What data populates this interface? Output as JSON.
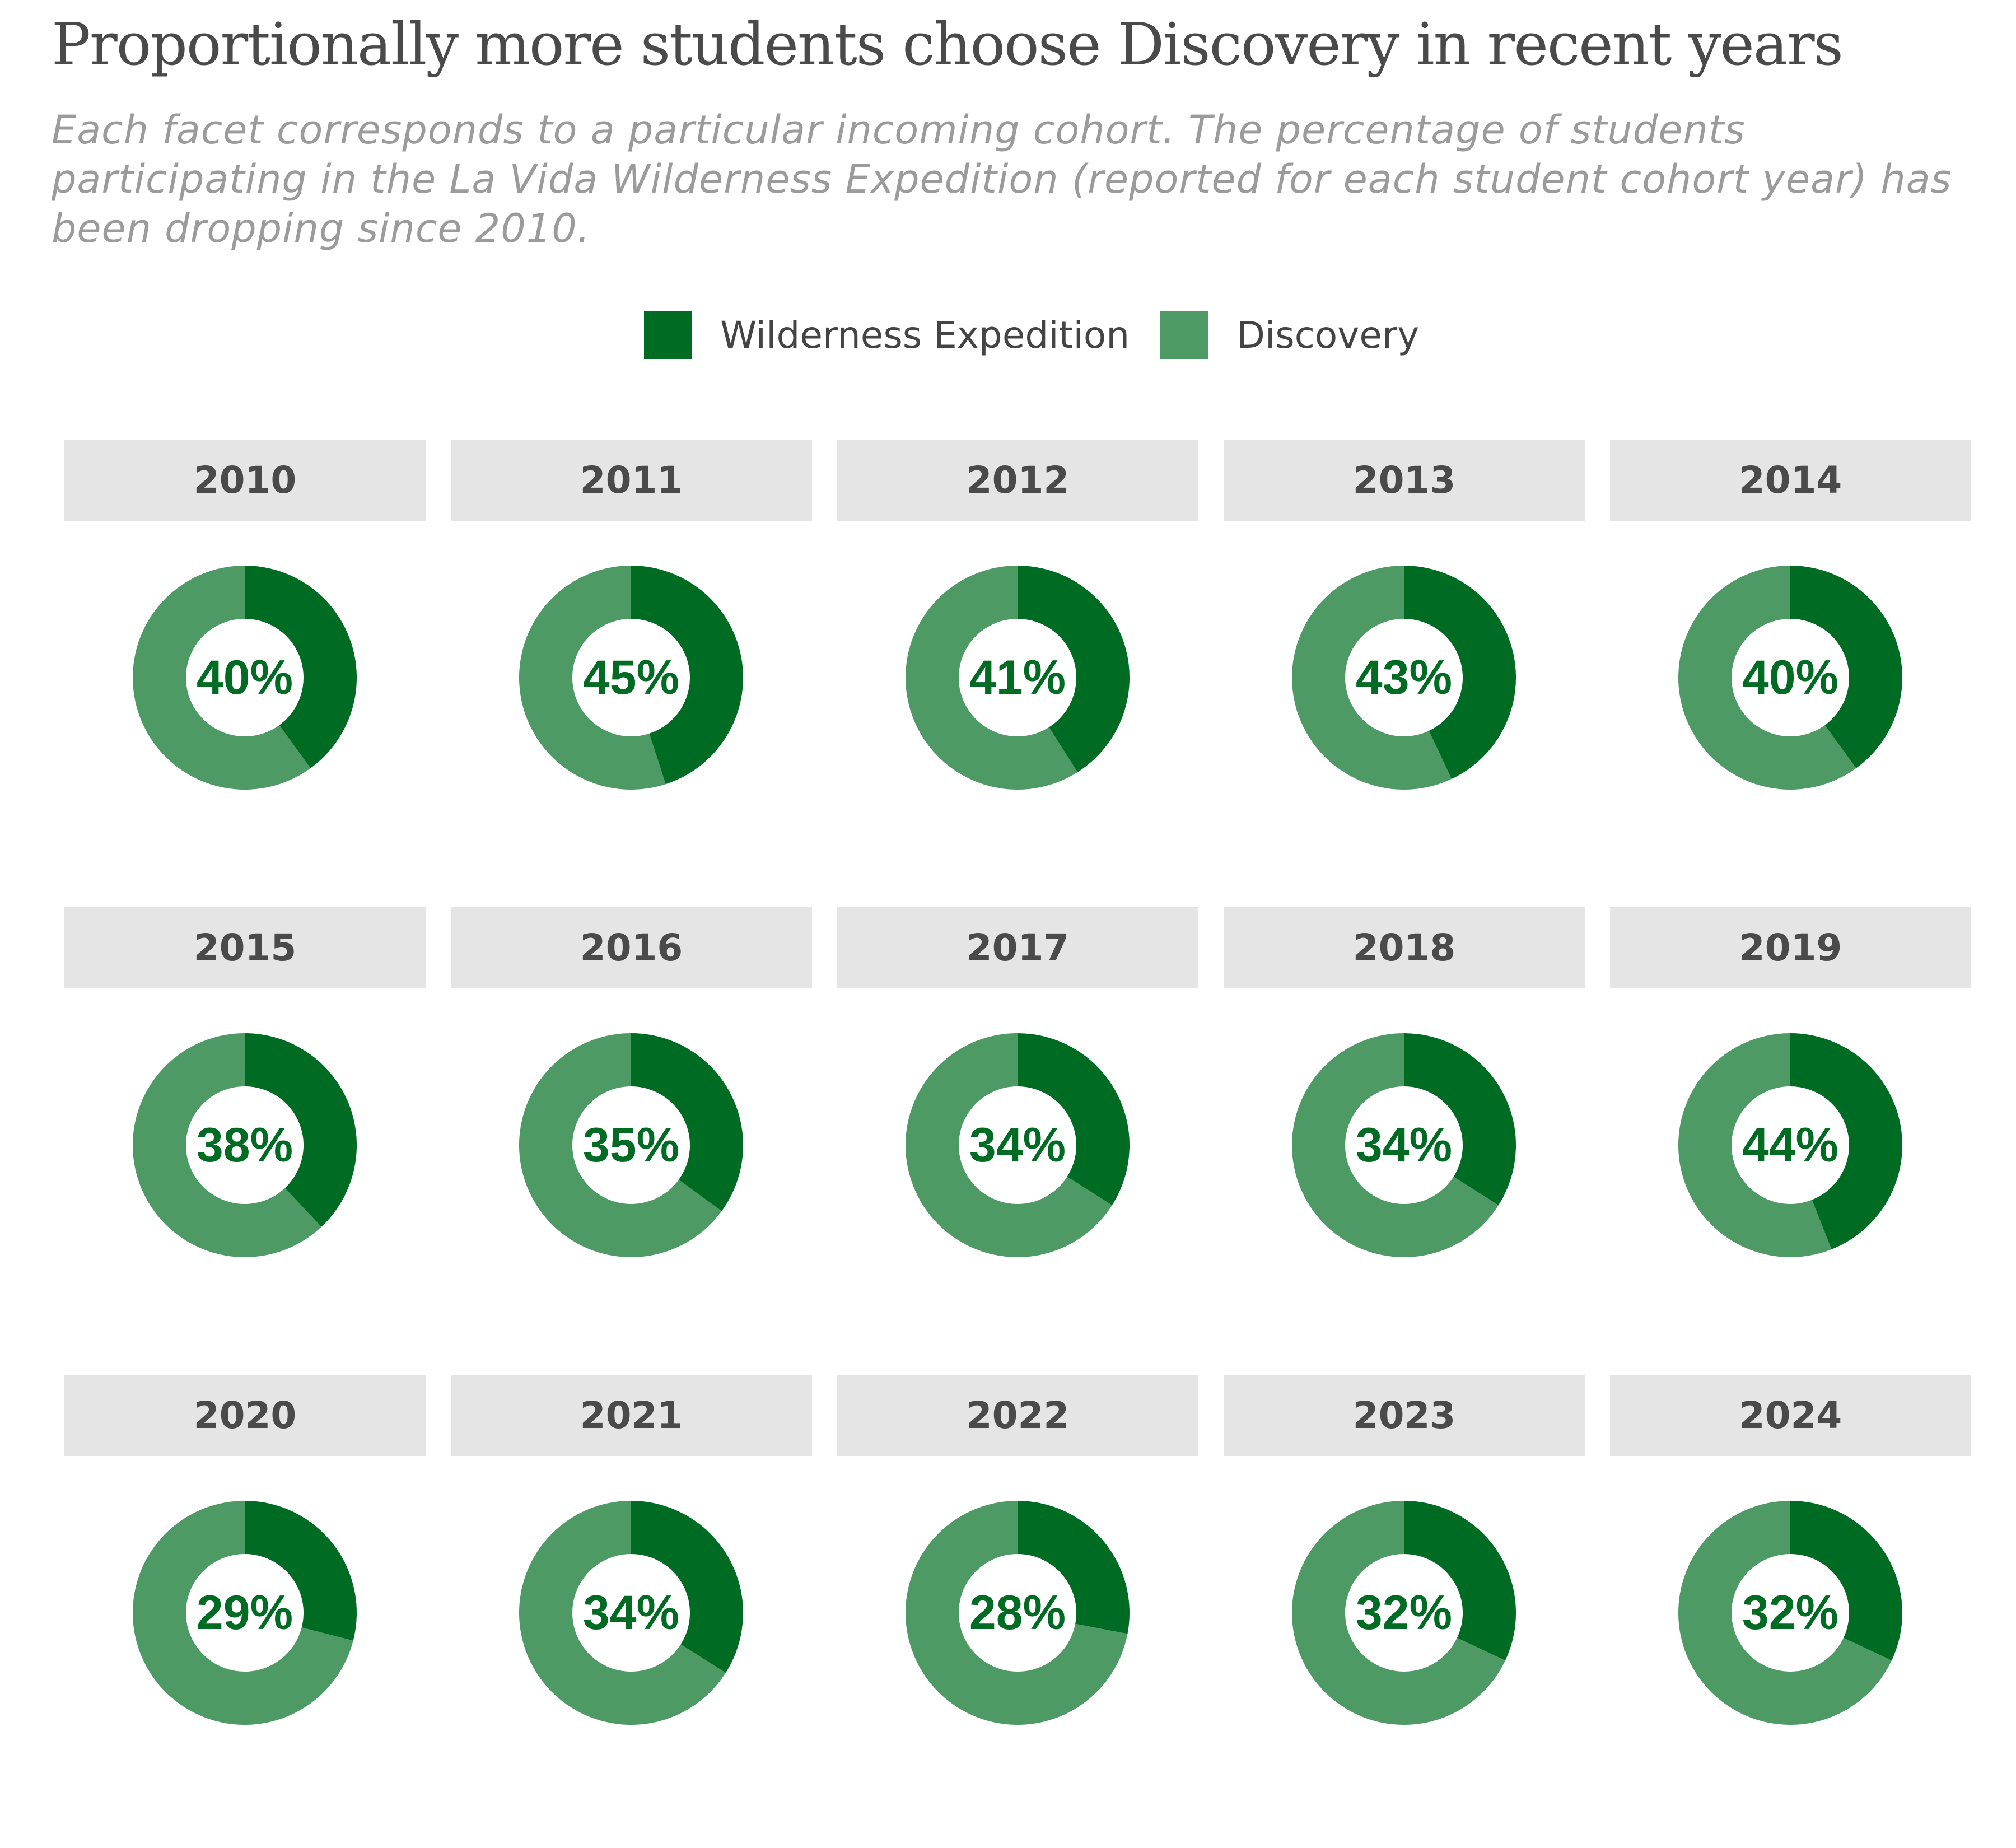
{
  "title": "Proportionally more students choose Discovery in recent years",
  "subtitle": "Each facet corresponds to a particular incoming cohort. The percentage of students participating in the La Vida Wilderness Expedition (reported for each student cohort year) has been dropping since 2010.",
  "colors": {
    "wilderness": "#006b22",
    "discovery": "#4d9a65",
    "strip_bg": "#e5e5e5",
    "label": "#006b22"
  },
  "legend": [
    {
      "label": "Wilderness Expedition",
      "color": "#006b22"
    },
    {
      "label": "Discovery",
      "color": "#4d9a65"
    }
  ],
  "chart_data": {
    "type": "pie",
    "variant": "donut",
    "facet_by": "cohort year",
    "series": [
      {
        "name": "Wilderness Expedition"
      },
      {
        "name": "Discovery"
      }
    ],
    "facets": [
      {
        "year": "2010",
        "wilderness": 40,
        "discovery": 60,
        "label": "40%"
      },
      {
        "year": "2011",
        "wilderness": 45,
        "discovery": 55,
        "label": "45%"
      },
      {
        "year": "2012",
        "wilderness": 41,
        "discovery": 59,
        "label": "41%"
      },
      {
        "year": "2013",
        "wilderness": 43,
        "discovery": 57,
        "label": "43%"
      },
      {
        "year": "2014",
        "wilderness": 40,
        "discovery": 60,
        "label": "40%"
      },
      {
        "year": "2015",
        "wilderness": 38,
        "discovery": 62,
        "label": "38%"
      },
      {
        "year": "2016",
        "wilderness": 35,
        "discovery": 65,
        "label": "35%"
      },
      {
        "year": "2017",
        "wilderness": 34,
        "discovery": 66,
        "label": "34%"
      },
      {
        "year": "2018",
        "wilderness": 34,
        "discovery": 66,
        "label": "34%"
      },
      {
        "year": "2019",
        "wilderness": 44,
        "discovery": 56,
        "label": "44%"
      },
      {
        "year": "2020",
        "wilderness": 29,
        "discovery": 71,
        "label": "29%"
      },
      {
        "year": "2021",
        "wilderness": 34,
        "discovery": 66,
        "label": "34%"
      },
      {
        "year": "2022",
        "wilderness": 28,
        "discovery": 72,
        "label": "28%"
      },
      {
        "year": "2023",
        "wilderness": 32,
        "discovery": 68,
        "label": "32%"
      },
      {
        "year": "2024",
        "wilderness": 32,
        "discovery": 68,
        "label": "32%"
      }
    ],
    "legend_position": "top-center"
  }
}
